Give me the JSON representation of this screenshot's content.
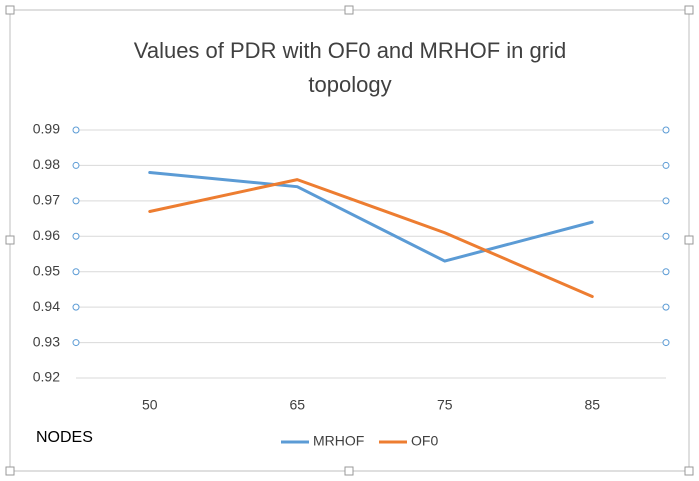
{
  "chart_data": {
    "type": "line",
    "title": "Values  of PDR with OF0 and MRHOF in grid topology",
    "x_label": "NODES",
    "categories": [
      "50",
      "65",
      "75",
      "85"
    ],
    "series": [
      {
        "name": "MRHOF",
        "color": "#5b9bd5",
        "values": [
          0.978,
          0.974,
          0.953,
          0.964
        ]
      },
      {
        "name": "OF0",
        "color": "#ed7d31",
        "values": [
          0.967,
          0.976,
          0.961,
          0.943
        ]
      }
    ],
    "ylim": [
      0.92,
      0.99
    ],
    "yticks": [
      0.92,
      0.93,
      0.94,
      0.95,
      0.96,
      0.97,
      0.98,
      0.99
    ],
    "grid": true,
    "legend": "bottom"
  }
}
